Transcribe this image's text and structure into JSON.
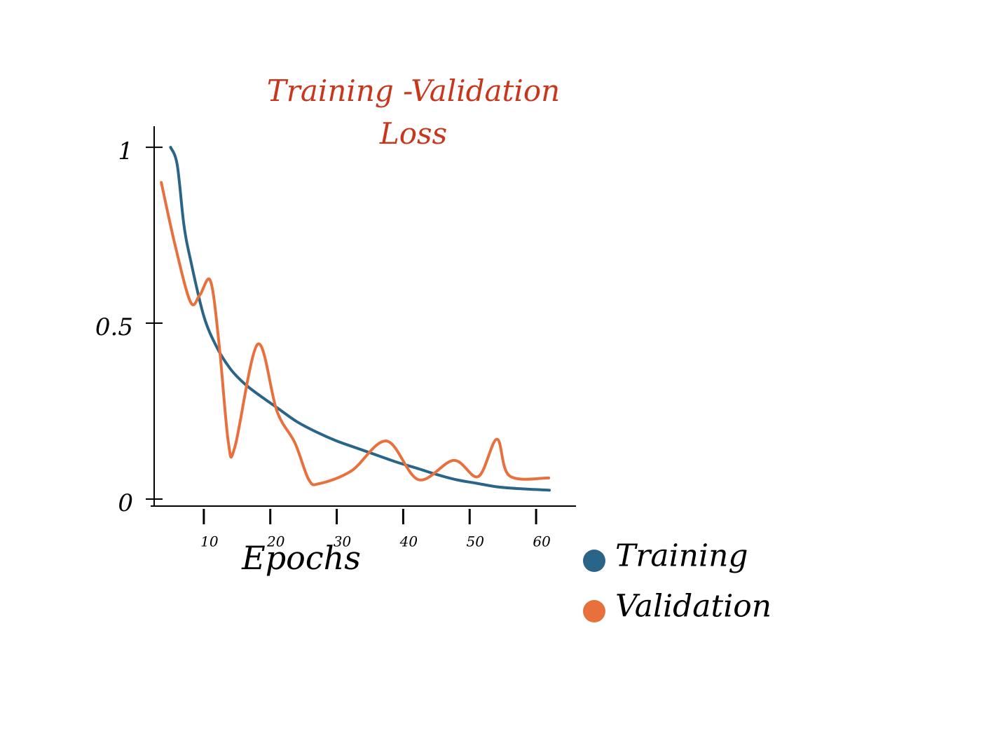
{
  "chart_data": {
    "type": "line",
    "title": "Training -Validation Loss",
    "x_label": "Epochs",
    "xlim": [
      2,
      66
    ],
    "xticks": [
      10,
      20,
      30,
      40,
      50,
      60
    ],
    "ylim": [
      -0.02,
      1.06
    ],
    "yticks": [
      0,
      {
        "value": 0.5,
        "label": "0.5"
      },
      1
    ],
    "series": [
      {
        "name": "Training",
        "color": "#2a6589",
        "x": [
          5,
          6,
          7,
          8,
          10,
          12,
          14,
          16,
          18,
          21,
          24,
          27,
          30,
          33,
          36,
          39,
          42,
          45,
          48,
          51,
          54,
          57,
          62
        ],
        "values": [
          1.0,
          0.95,
          0.78,
          0.68,
          0.52,
          0.43,
          0.37,
          0.33,
          0.3,
          0.26,
          0.22,
          0.19,
          0.165,
          0.145,
          0.125,
          0.105,
          0.088,
          0.07,
          0.055,
          0.045,
          0.035,
          0.03,
          0.025
        ]
      },
      {
        "name": "Validation",
        "color": "#e8703d",
        "x": [
          3.6,
          5.7,
          8,
          9.4,
          11,
          12.3,
          13.7,
          14.7,
          18.1,
          21,
          23.7,
          25.8,
          27.4,
          32.2,
          37.5,
          42.3,
          47.6,
          51.3,
          54.1,
          56,
          61.9
        ],
        "values": [
          0.9,
          0.72,
          0.56,
          0.58,
          0.62,
          0.44,
          0.16,
          0.15,
          0.44,
          0.25,
          0.16,
          0.055,
          0.044,
          0.08,
          0.165,
          0.055,
          0.11,
          0.064,
          0.17,
          0.066,
          0.06
        ]
      }
    ]
  }
}
